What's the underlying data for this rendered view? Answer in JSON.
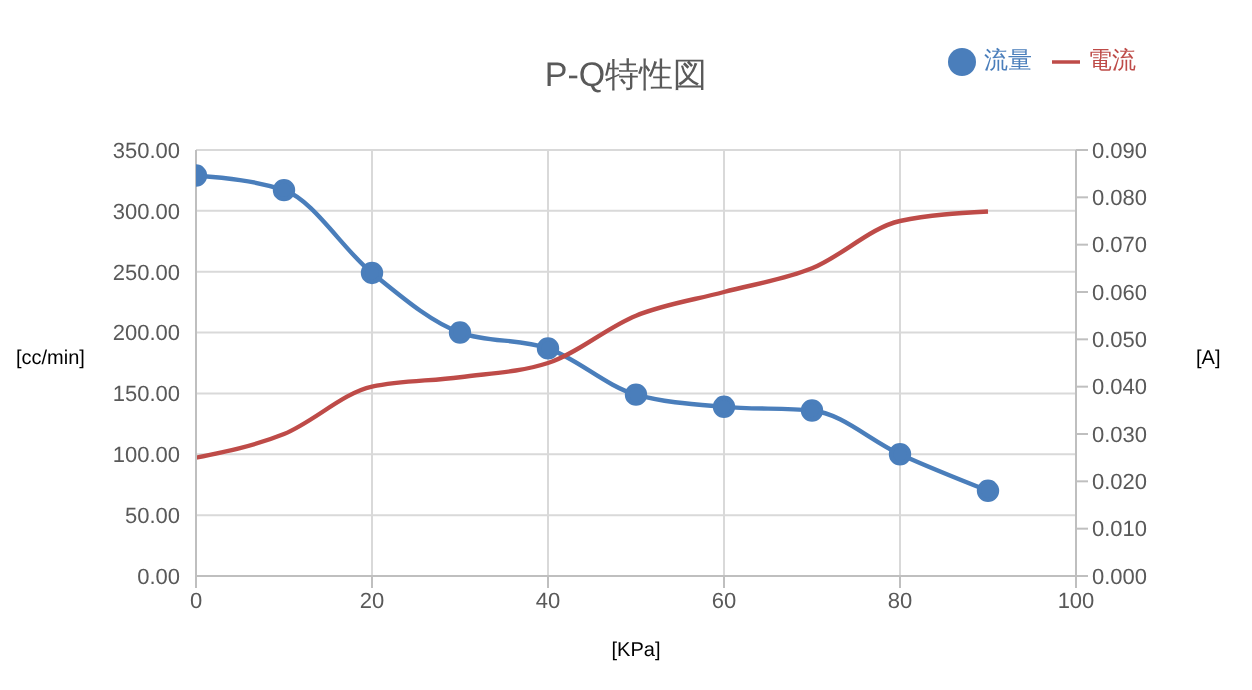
{
  "chart_data": {
    "type": "line",
    "title": "P-Q特性図",
    "xlabel": "[KPa]",
    "ylabel": "[cc/min]",
    "y2label": "[A]",
    "x": [
      0,
      10,
      20,
      30,
      40,
      50,
      60,
      70,
      80,
      90
    ],
    "series": [
      {
        "name": "流量",
        "color": "#4a7ebb",
        "marker": "circle",
        "values": [
          329,
          317,
          249,
          200,
          187,
          149,
          139,
          136,
          100,
          70
        ]
      },
      {
        "name": "電流",
        "color": "#be4b48",
        "marker": "none",
        "axis": "y2",
        "values": [
          0.025,
          0.03,
          0.04,
          0.042,
          0.045,
          0.055,
          0.06,
          0.065,
          0.075,
          0.077
        ]
      }
    ],
    "xlim": [
      0,
      100
    ],
    "xticks": [
      0,
      20,
      40,
      60,
      80,
      100
    ],
    "ylim": [
      0,
      350
    ],
    "yticks": [
      {
        "value": 0,
        "label": "0.00"
      },
      {
        "value": 50,
        "label": "50.00"
      },
      {
        "value": 100,
        "label": "100.00"
      },
      {
        "value": 150,
        "label": "150.00"
      },
      {
        "value": 200,
        "label": "200.00"
      },
      {
        "value": 250,
        "label": "250.00"
      },
      {
        "value": 300,
        "label": "300.00"
      },
      {
        "value": 350,
        "label": "350.00"
      }
    ],
    "y2lim": [
      0,
      0.09
    ],
    "y2ticks": [
      {
        "value": 0,
        "label": "0.000"
      },
      {
        "value": 0.01,
        "label": "0.010"
      },
      {
        "value": 0.02,
        "label": "0.020"
      },
      {
        "value": 0.03,
        "label": "0.030"
      },
      {
        "value": 0.04,
        "label": "0.040"
      },
      {
        "value": 0.05,
        "label": "0.050"
      },
      {
        "value": 0.06,
        "label": "0.060"
      },
      {
        "value": 0.07,
        "label": "0.070"
      },
      {
        "value": 0.08,
        "label": "0.080"
      },
      {
        "value": 0.09,
        "label": "0.090"
      }
    ],
    "grid": true,
    "legend": "top right",
    "line_style": "solid"
  }
}
